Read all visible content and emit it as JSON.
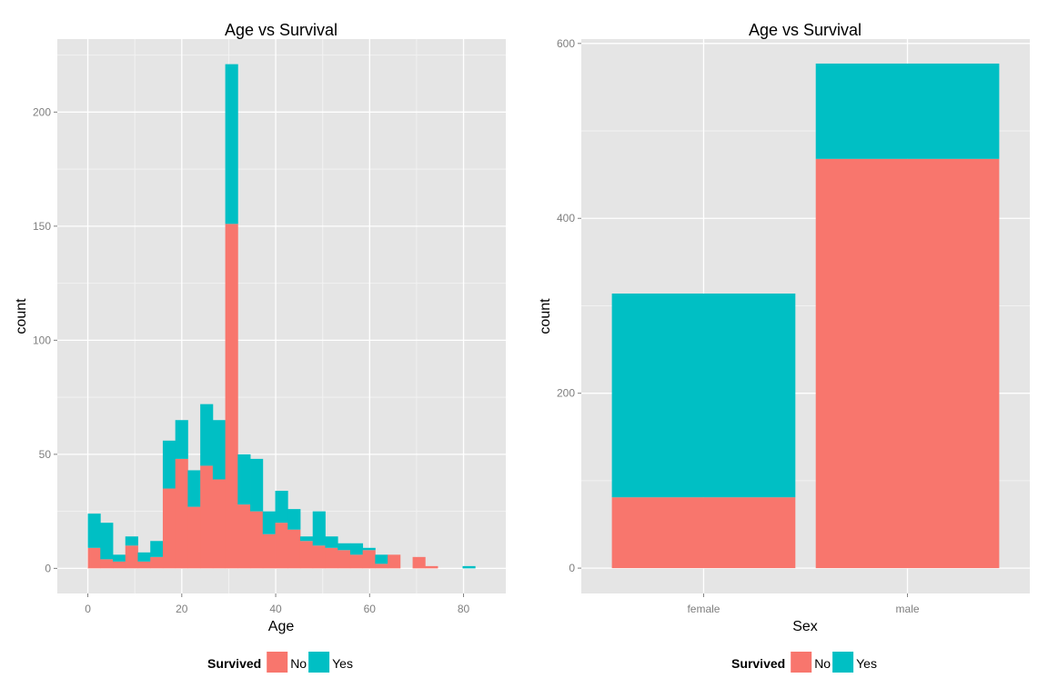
{
  "colors": {
    "No": "#F8766D",
    "Yes": "#00BFC4",
    "panel": "#E5E5E5",
    "grid_major": "#FFFFFF",
    "grid_minor": "#F2F2F2"
  },
  "legend": {
    "title": "Survived",
    "items": [
      {
        "key": "No",
        "label": "No"
      },
      {
        "key": "Yes",
        "label": "Yes"
      }
    ],
    "position": "bottom"
  },
  "chart_data": [
    {
      "type": "bar",
      "subtype": "stacked-histogram",
      "title": "Age vs Survival",
      "xlabel": "Age",
      "ylabel": "count",
      "xlim": [
        -6.5,
        89
      ],
      "ylim": [
        -11,
        232
      ],
      "xticks": [
        0,
        20,
        40,
        60,
        80
      ],
      "yticks": [
        0,
        50,
        100,
        150,
        200
      ],
      "binwidth": 2.66,
      "bins": [
        {
          "x0": 0.0,
          "No": 9,
          "Yes": 15
        },
        {
          "x0": 2.66,
          "No": 4,
          "Yes": 16
        },
        {
          "x0": 5.32,
          "No": 3,
          "Yes": 3
        },
        {
          "x0": 7.98,
          "No": 10,
          "Yes": 4
        },
        {
          "x0": 10.64,
          "No": 3,
          "Yes": 4
        },
        {
          "x0": 13.3,
          "No": 5,
          "Yes": 7
        },
        {
          "x0": 15.96,
          "No": 35,
          "Yes": 21
        },
        {
          "x0": 18.62,
          "No": 48,
          "Yes": 17
        },
        {
          "x0": 21.28,
          "No": 27,
          "Yes": 16
        },
        {
          "x0": 23.94,
          "No": 45,
          "Yes": 27
        },
        {
          "x0": 26.6,
          "No": 39,
          "Yes": 26
        },
        {
          "x0": 29.26,
          "No": 151,
          "Yes": 70
        },
        {
          "x0": 31.92,
          "No": 28,
          "Yes": 22
        },
        {
          "x0": 34.58,
          "No": 25,
          "Yes": 23
        },
        {
          "x0": 37.24,
          "No": 15,
          "Yes": 10
        },
        {
          "x0": 39.9,
          "No": 20,
          "Yes": 14
        },
        {
          "x0": 42.56,
          "No": 17,
          "Yes": 9
        },
        {
          "x0": 45.22,
          "No": 12,
          "Yes": 2
        },
        {
          "x0": 47.88,
          "No": 10,
          "Yes": 15
        },
        {
          "x0": 50.54,
          "No": 9,
          "Yes": 5
        },
        {
          "x0": 53.2,
          "No": 8,
          "Yes": 3
        },
        {
          "x0": 55.86,
          "No": 6,
          "Yes": 5
        },
        {
          "x0": 58.52,
          "No": 8,
          "Yes": 1
        },
        {
          "x0": 61.18,
          "No": 2,
          "Yes": 4
        },
        {
          "x0": 63.84,
          "No": 6,
          "Yes": 0
        },
        {
          "x0": 66.5,
          "No": 0,
          "Yes": 0
        },
        {
          "x0": 69.16,
          "No": 5,
          "Yes": 0
        },
        {
          "x0": 71.82,
          "No": 1,
          "Yes": 0
        },
        {
          "x0": 74.48,
          "No": 0,
          "Yes": 0
        },
        {
          "x0": 77.14,
          "No": 0,
          "Yes": 0
        },
        {
          "x0": 79.8,
          "No": 0,
          "Yes": 1
        }
      ],
      "grid": true
    },
    {
      "type": "bar",
      "subtype": "stacked",
      "title": "Age vs Survival",
      "xlabel": "Sex",
      "ylabel": "count",
      "ylim": [
        -29,
        605
      ],
      "yticks": [
        0,
        200,
        400,
        600
      ],
      "categories": [
        "female",
        "male"
      ],
      "series": [
        {
          "name": "No",
          "values": [
            81,
            468
          ]
        },
        {
          "name": "Yes",
          "values": [
            233,
            109
          ]
        }
      ],
      "grid": true
    }
  ]
}
